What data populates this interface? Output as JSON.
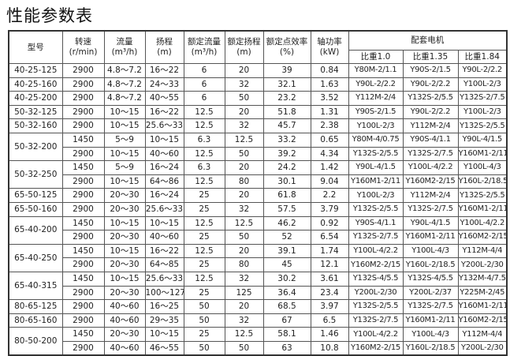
{
  "title": "性能参数表",
  "headers": {
    "model": "型号",
    "speed": [
      "转速",
      "(r/min)"
    ],
    "flow": [
      "流量",
      "(m³/h)"
    ],
    "head": [
      "扬程",
      "(m)"
    ],
    "rated_flow": [
      "额定流量",
      "(m³/h)"
    ],
    "rated_head": [
      "额定扬程",
      "(m)"
    ],
    "efficiency": [
      "额定点效率",
      "(%)"
    ],
    "power": [
      "轴功率",
      "(kW)"
    ],
    "motor": "配套电机",
    "motor_sub": [
      "比重1.0",
      "比重1.35",
      "比重1.84"
    ]
  },
  "groups": [
    {
      "model": "40-25-125",
      "rows": [
        [
          "2900",
          "4.8～7.2",
          "16～22",
          "6",
          "20",
          "39",
          "0.84",
          "Y80M-2/1.1",
          "Y90S-2/1.5",
          "Y90L-2/2.2"
        ]
      ]
    },
    {
      "model": "40-25-160",
      "rows": [
        [
          "2900",
          "4.8～7.2",
          "24～33",
          "6",
          "32",
          "32.1",
          "1.63",
          "Y90L-2/2.2",
          "Y90L-2/2.2",
          "Y100L-2/3"
        ]
      ]
    },
    {
      "model": "40-25-200",
      "rows": [
        [
          "2900",
          "4.8～7.2",
          "40～55",
          "6",
          "50",
          "23.2",
          "3.52",
          "Y112M-2/4",
          "Y132S-2/5.5",
          "Y132S-2/7.5"
        ]
      ]
    },
    {
      "model": "50-32-125",
      "rows": [
        [
          "2900",
          "10～15",
          "16～22",
          "12.5",
          "20",
          "51.8",
          "1.31",
          "Y90S-2/1.5",
          "Y90L-2/2.2",
          "Y100L-2/3"
        ]
      ]
    },
    {
      "model": "50-32-160",
      "rows": [
        [
          "2900",
          "10～15",
          "25.6～33",
          "12.5",
          "32",
          "45.7",
          "2.38",
          "Y100L-2/3",
          "Y112M-2/4",
          "Y132S-2/5.5"
        ]
      ]
    },
    {
      "model": "50-32-200",
      "rows": [
        [
          "1450",
          "5～9",
          "10～15",
          "6.3",
          "12.5",
          "33.2",
          "0.65",
          "Y80M-4/0.75",
          "Y90S-4/1.1",
          "Y90L-4/1.5"
        ],
        [
          "2900",
          "10～15",
          "40～60",
          "12.5",
          "50",
          "39.2",
          "4.34",
          "Y132S-2/5.5",
          "Y132S-2/7.5",
          "Y160M1-2/11"
        ]
      ]
    },
    {
      "model": "50-32-250",
      "rows": [
        [
          "1450",
          "5～9",
          "16～24",
          "6.3",
          "20",
          "24.2",
          "1.42",
          "Y90L-4/1.5",
          "Y100L-4/2.2",
          "Y100L-4/3"
        ],
        [
          "2900",
          "10～15",
          "64～86",
          "12.5",
          "80",
          "30.1",
          "9.04",
          "Y160M1-2/11",
          "Y160M2-2/15",
          "Y160L-2/18.5"
        ]
      ]
    },
    {
      "model": "65-50-125",
      "rows": [
        [
          "2900",
          "20～30",
          "16～24",
          "25",
          "20",
          "61.8",
          "2.2",
          "Y100L-2/3",
          "Y112M-2/4",
          "Y132S-2/5.5"
        ]
      ]
    },
    {
      "model": "65-50-160",
      "rows": [
        [
          "2900",
          "20～30",
          "25.6～33",
          "25",
          "32",
          "57.5",
          "3.79",
          "Y132S-2/5.5",
          "Y132S-2/7.5",
          "Y160M1-2/11"
        ]
      ]
    },
    {
      "model": "65-40-200",
      "rows": [
        [
          "1450",
          "10～15",
          "10～15",
          "12.5",
          "12.5",
          "46.2",
          "0.92",
          "Y90S-4/1.1",
          "Y90L-4/1.5",
          "Y100L-4/2.2"
        ],
        [
          "2900",
          "20～30",
          "40～60",
          "25",
          "50",
          "52",
          "6.54",
          "Y132S-2/7.5",
          "Y160M1-2/11",
          "Y160M2-2/15"
        ]
      ]
    },
    {
      "model": "65-40-250",
      "rows": [
        [
          "1450",
          "10～15",
          "16～22",
          "12.5",
          "20",
          "39.1",
          "1.74",
          "Y100L-4/2.2",
          "Y100L-4/3",
          "Y112M-4/4"
        ],
        [
          "2900",
          "20～30",
          "64～85",
          "25",
          "80",
          "45",
          "12.1",
          "Y160M2-2/15",
          "Y160L-2/18.5",
          "Y200L-2/30"
        ]
      ]
    },
    {
      "model": "65-40-315",
      "rows": [
        [
          "1450",
          "10～15",
          "25.6～33",
          "12.5",
          "32",
          "30.2",
          "3.61",
          "Y132S-4/5.5",
          "Y132S-4/5.5",
          "Y132M-4/7.5"
        ],
        [
          "2900",
          "20～30",
          "100～127",
          "25",
          "125",
          "36.4",
          "23.4",
          "Y200L-2/30",
          "Y200L-2/37",
          "Y225M-2/45"
        ]
      ]
    },
    {
      "model": "80-65-125",
      "rows": [
        [
          "2900",
          "40～60",
          "16～25",
          "50",
          "20",
          "68.5",
          "3.97",
          "Y132S-2/5.5",
          "Y132S-2/7.5",
          "Y160M1-2/11"
        ]
      ]
    },
    {
      "model": "80-65-160",
      "rows": [
        [
          "2900",
          "40～60",
          "29～35",
          "50",
          "32",
          "67",
          "6.5",
          "Y132S-2/7.5",
          "Y160M1-2/11",
          "Y160M2-2/15"
        ]
      ]
    },
    {
      "model": "80-50-200",
      "rows": [
        [
          "1450",
          "20～30",
          "10～15",
          "25",
          "12.5",
          "58.1",
          "1.46",
          "Y100L-4/2.2",
          "Y100L-4/3",
          "Y112M-4/4"
        ],
        [
          "2900",
          "40～60",
          "46～55",
          "50",
          "50",
          "63",
          "10.8",
          "Y160M2-2/15",
          "Y160L-2/18.5",
          "Y200L-2/30"
        ]
      ]
    }
  ]
}
